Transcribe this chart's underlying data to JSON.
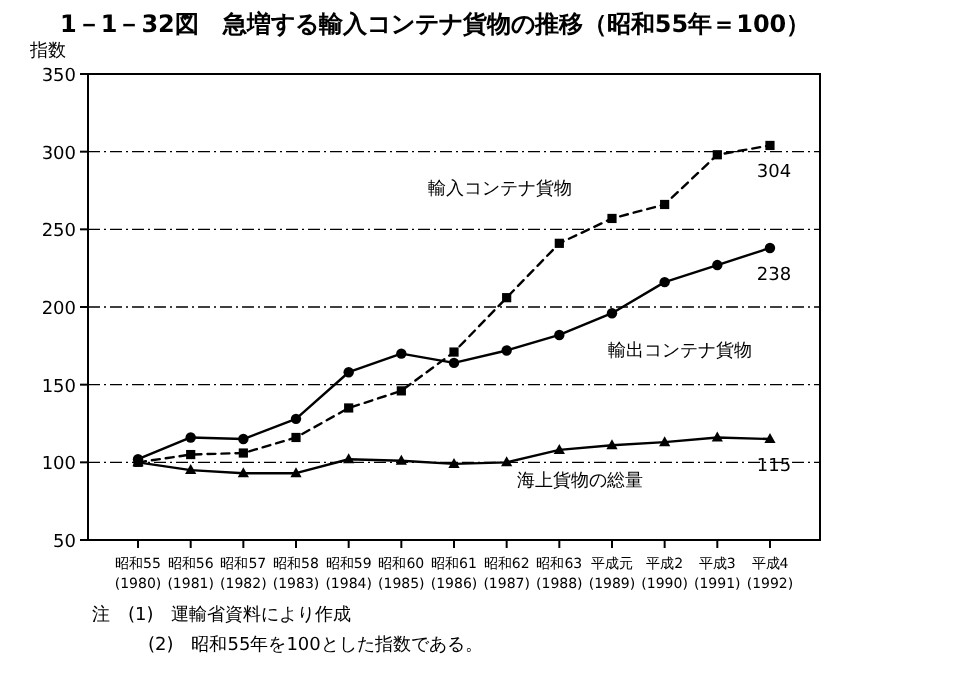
{
  "chart_data": {
    "type": "line",
    "title": "1－1－32図　急増する輸入コンテナ貨物の推移（昭和55年＝100）",
    "ylabel": "指数",
    "categories": [
      "昭和55\n(1980)",
      "昭和56\n(1981)",
      "昭和57\n(1982)",
      "昭和58\n(1983)",
      "昭和59\n(1984)",
      "昭和60\n(1985)",
      "昭和61\n(1986)",
      "昭和62\n(1987)",
      "昭和63\n(1988)",
      "平成元\n(1989)",
      "平成2\n(1990)",
      "平成3\n(1991)",
      "平成4\n(1992)"
    ],
    "series": [
      {
        "name": "輸入コンテナ貨物",
        "color": "#000000",
        "marker": "square",
        "line_style": "dashed",
        "values": [
          100,
          105,
          106,
          116,
          135,
          146,
          171,
          206,
          241,
          257,
          266,
          298,
          304
        ],
        "value_labels": [
          null,
          null,
          null,
          null,
          null,
          null,
          null,
          null,
          null,
          null,
          null,
          null,
          "304"
        ]
      },
      {
        "name": "輸出コンテナ貨物",
        "color": "#000000",
        "marker": "circle",
        "line_style": "solid",
        "values": [
          102,
          116,
          115,
          128,
          158,
          170,
          164,
          172,
          182,
          196,
          216,
          227,
          238
        ],
        "value_labels": [
          null,
          null,
          null,
          null,
          null,
          null,
          null,
          null,
          null,
          null,
          null,
          null,
          "238"
        ]
      },
      {
        "name": "海上貨物の総量",
        "color": "#000000",
        "marker": "triangle",
        "line_style": "solid",
        "values": [
          100,
          95,
          93,
          93,
          102,
          101,
          99,
          100,
          108,
          111,
          113,
          116,
          115
        ],
        "value_labels": [
          null,
          null,
          null,
          null,
          null,
          null,
          null,
          null,
          null,
          null,
          null,
          null,
          "115"
        ]
      }
    ],
    "ylim": [
      50,
      350
    ],
    "yticks": [
      50,
      100,
      150,
      200,
      250,
      300,
      350
    ],
    "grid": "y",
    "legend": false,
    "annotations": [
      "注　(1)　運輸省資料により作成",
      "(2)　昭和55年を100とした指数である。"
    ]
  }
}
